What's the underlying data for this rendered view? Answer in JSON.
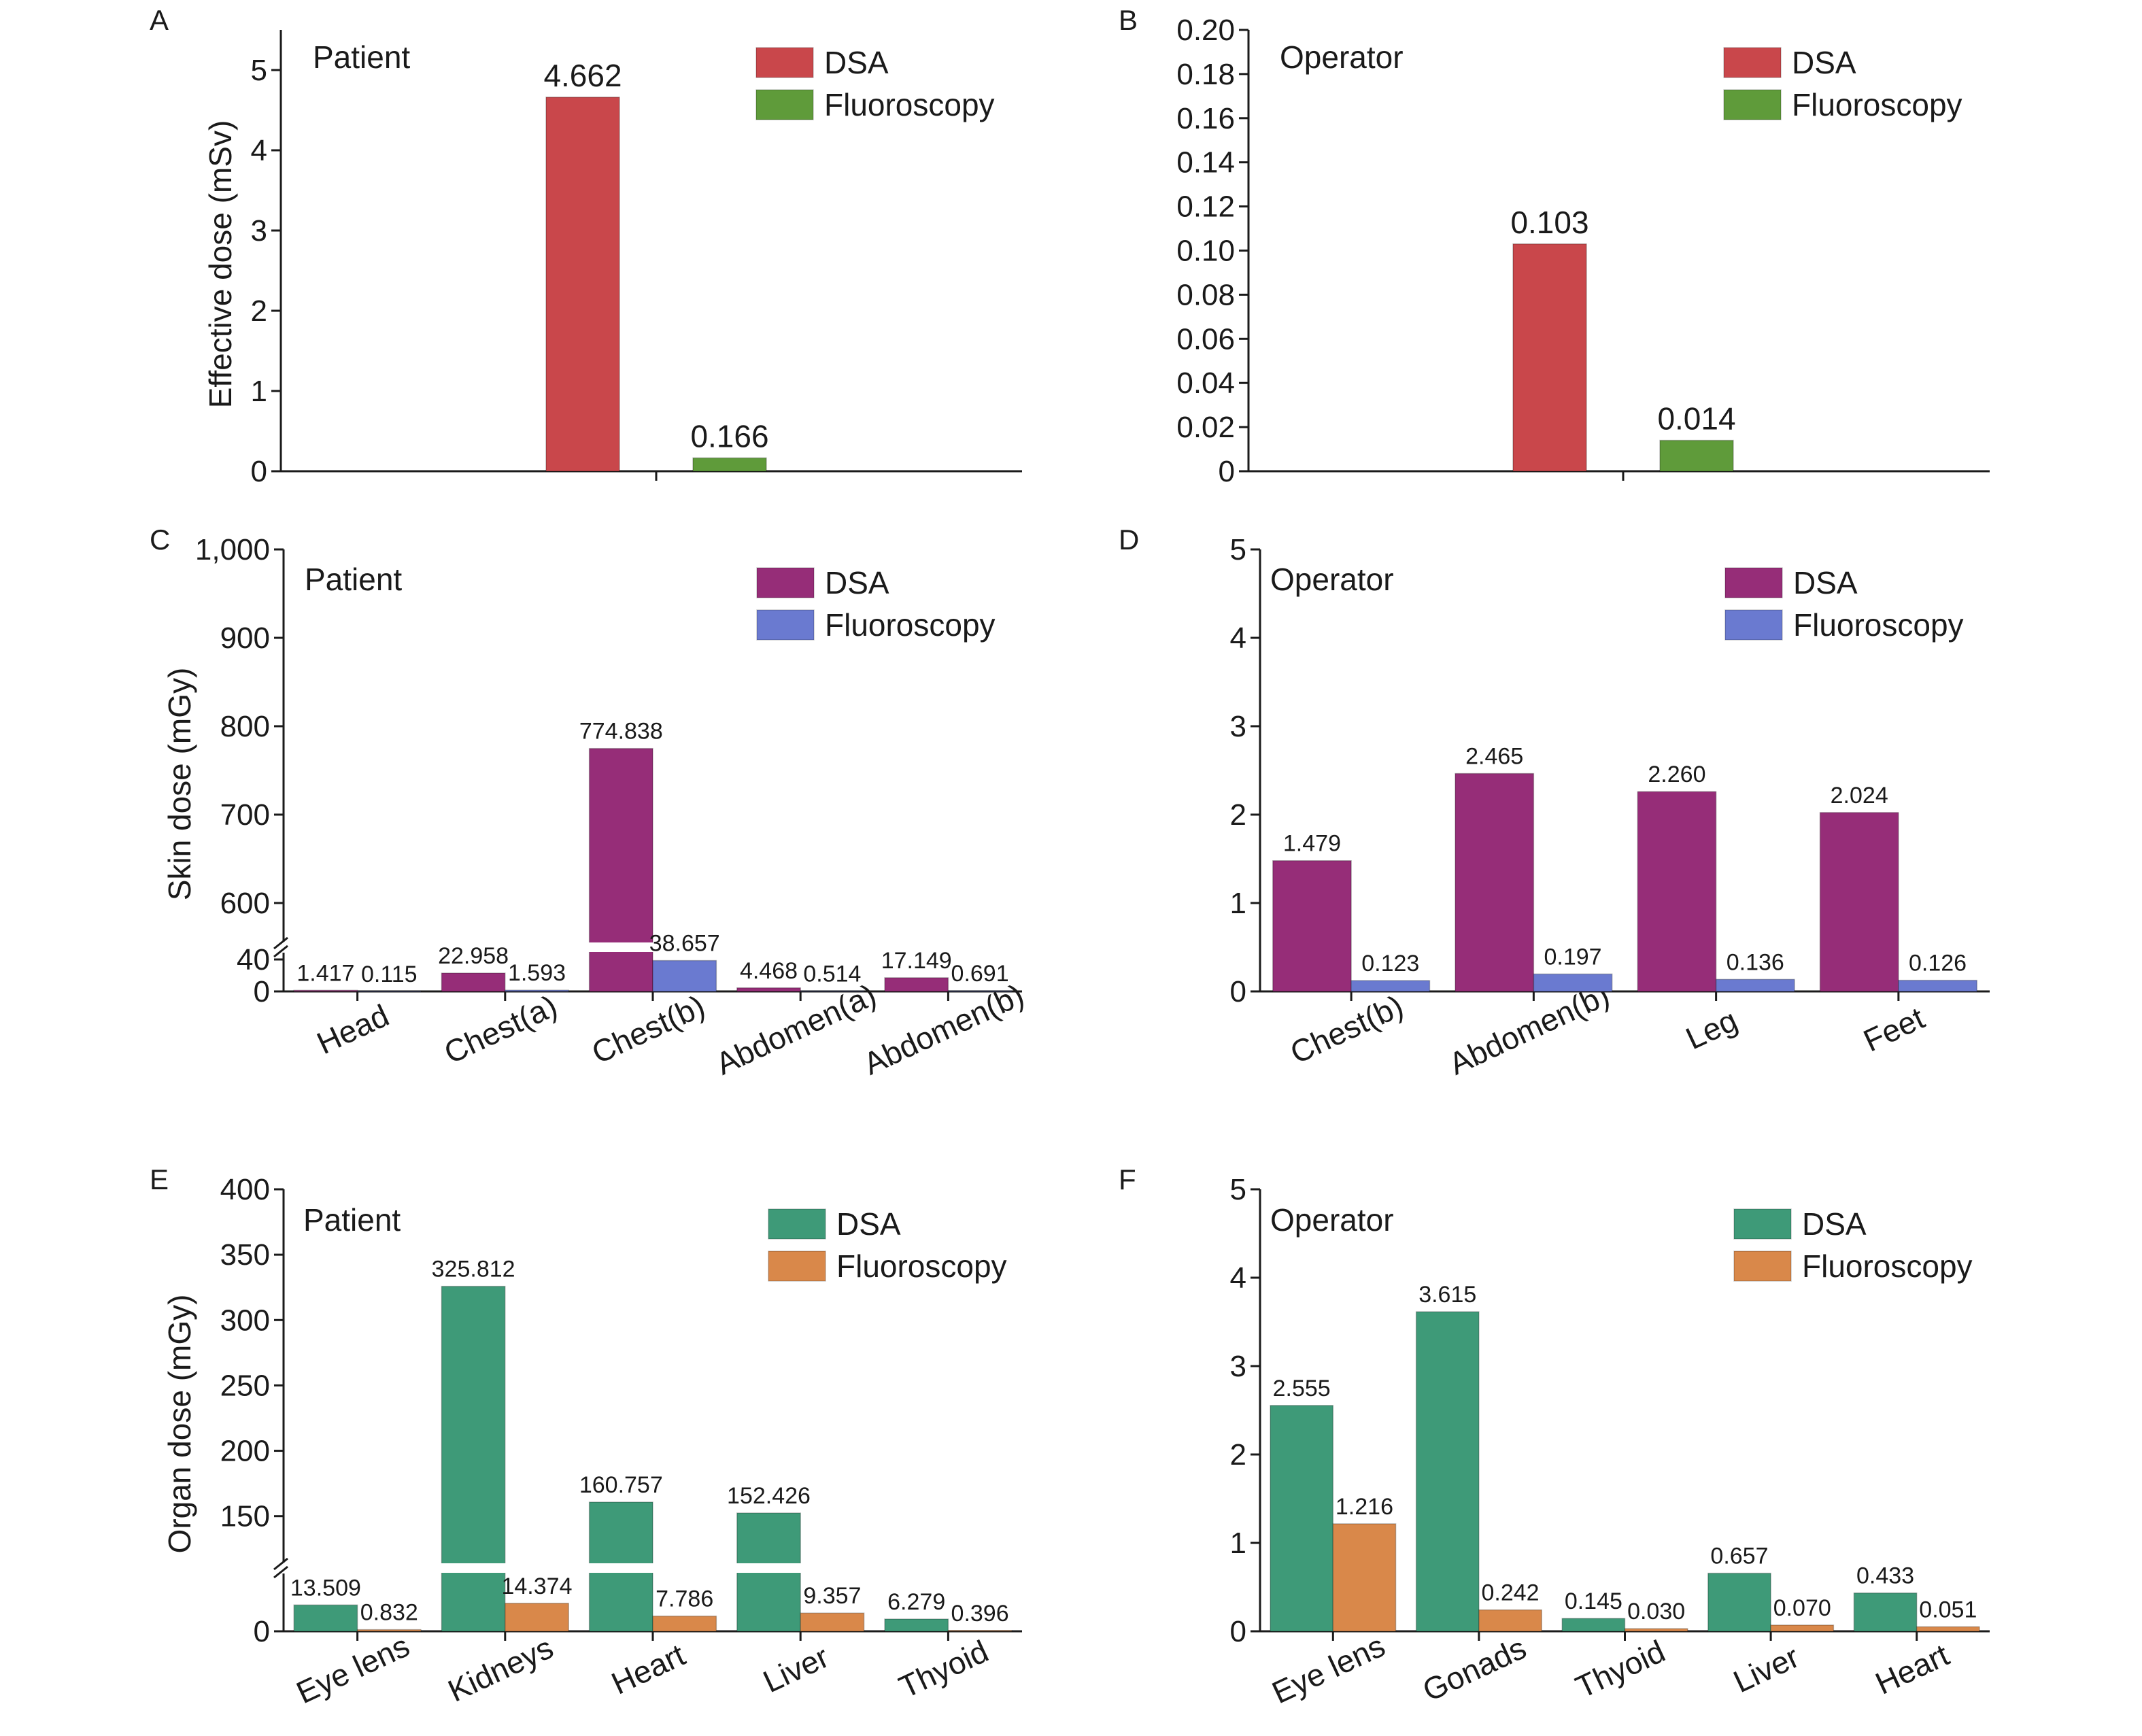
{
  "colors": {
    "dsa_red": "#c9474b",
    "fluoro_green": "#5f9b3a",
    "dsa_purple": "#962d78",
    "fluoro_blue": "#6a7ad0",
    "dsa_teal": "#3e9a78",
    "fluoro_orange": "#d9884a",
    "axis": "#1a1a1a"
  },
  "chart_data": [
    {
      "panel": "A",
      "type": "bar",
      "subject": "Patient",
      "ylabel": "Effective dose (mSv)",
      "ylim": [
        0,
        5.5
      ],
      "yticks": [
        "0",
        "1",
        "2",
        "3",
        "4",
        "5"
      ],
      "categories": [
        ""
      ],
      "series": [
        {
          "name": "DSA",
          "values": [
            4.662
          ],
          "labels": [
            "4.662"
          ]
        },
        {
          "name": "Fluoroscopy",
          "values": [
            0.166
          ],
          "labels": [
            "0.166"
          ]
        }
      ],
      "legend": "top-right"
    },
    {
      "panel": "B",
      "type": "bar",
      "subject": "Operator",
      "ylabel": "",
      "ylim": [
        0,
        0.2
      ],
      "yticks": [
        "0",
        "0.02",
        "0.04",
        "0.06",
        "0.08",
        "0.10",
        "0.12",
        "0.14",
        "0.16",
        "0.18",
        "0.20"
      ],
      "categories": [
        ""
      ],
      "series": [
        {
          "name": "DSA",
          "values": [
            0.103
          ],
          "labels": [
            "0.103"
          ]
        },
        {
          "name": "Fluoroscopy",
          "values": [
            0.014
          ],
          "labels": [
            "0.014"
          ]
        }
      ],
      "legend": "top-right"
    },
    {
      "panel": "C",
      "type": "bar",
      "subject": "Patient",
      "ylabel": "Skin dose (mGy)",
      "ylim": [
        0,
        1000
      ],
      "axis_break": [
        40,
        550
      ],
      "yticks": [
        "0",
        "40",
        "600",
        "700",
        "800",
        "900",
        "1,000"
      ],
      "categories": [
        "Head",
        "Chest(a)",
        "Chest(b)",
        "Abdomen(a)",
        "Abdomen(b)"
      ],
      "series": [
        {
          "name": "DSA",
          "values": [
            1.417,
            22.958,
            774.838,
            4.468,
            17.149
          ],
          "labels": [
            "1.417",
            "22.958",
            "774.838",
            "4.468",
            "17.149"
          ]
        },
        {
          "name": "Fluoroscopy",
          "values": [
            0.115,
            1.593,
            38.657,
            0.514,
            0.691
          ],
          "labels": [
            "0.115",
            "1.593",
            "38.657",
            "0.514",
            "0.691"
          ]
        }
      ],
      "legend": "top-right"
    },
    {
      "panel": "D",
      "type": "bar",
      "subject": "Operator",
      "ylabel": "",
      "ylim": [
        0,
        5
      ],
      "yticks": [
        "0",
        "1",
        "2",
        "3",
        "4",
        "5"
      ],
      "categories": [
        "Chest(b)",
        "Abdomen(b)",
        "Leg",
        "Feet"
      ],
      "series": [
        {
          "name": "DSA",
          "values": [
            1.479,
            2.465,
            2.26,
            2.024
          ],
          "labels": [
            "1.479",
            "2.465",
            "2.260",
            "2.024"
          ]
        },
        {
          "name": "Fluoroscopy",
          "values": [
            0.123,
            0.197,
            0.136,
            0.126
          ],
          "labels": [
            "0.123",
            "0.197",
            "0.136",
            "0.126"
          ]
        }
      ],
      "legend": "top-right"
    },
    {
      "panel": "E",
      "type": "bar",
      "subject": "Patient",
      "ylabel": "Organ dose (mGy)",
      "ylim": [
        0,
        400
      ],
      "axis_break": [
        30,
        115
      ],
      "yticks": [
        "0",
        "150",
        "200",
        "250",
        "300",
        "350",
        "400"
      ],
      "categories": [
        "Eye lens",
        "Kidneys",
        "Heart",
        "Liver",
        "Thyoid"
      ],
      "series": [
        {
          "name": "DSA",
          "values": [
            13.509,
            325.812,
            160.757,
            152.426,
            6.279
          ],
          "labels": [
            "13.509",
            "325.812",
            "160.757",
            "152.426",
            "6.279"
          ]
        },
        {
          "name": "Fluoroscopy",
          "values": [
            0.832,
            14.374,
            7.786,
            9.357,
            0.396
          ],
          "labels": [
            "0.832",
            "14.374",
            "7.786",
            "9.357",
            "0.396"
          ]
        }
      ],
      "legend": "top-right"
    },
    {
      "panel": "F",
      "type": "bar",
      "subject": "Operator",
      "ylabel": "",
      "ylim": [
        0,
        5
      ],
      "yticks": [
        "0",
        "1",
        "2",
        "3",
        "4",
        "5"
      ],
      "categories": [
        "Eye lens",
        "Gonads",
        "Thyoid",
        "Liver",
        "Heart"
      ],
      "series": [
        {
          "name": "DSA",
          "values": [
            2.555,
            3.615,
            0.145,
            0.657,
            0.433
          ],
          "labels": [
            "2.555",
            "3.615",
            "0.145",
            "0.657",
            "0.433"
          ]
        },
        {
          "name": "Fluoroscopy",
          "values": [
            1.216,
            0.242,
            0.03,
            0.07,
            0.051
          ],
          "labels": [
            "1.216",
            "0.242",
            "0.030",
            "0.070",
            "0.051"
          ]
        }
      ],
      "legend": "top-right"
    }
  ]
}
